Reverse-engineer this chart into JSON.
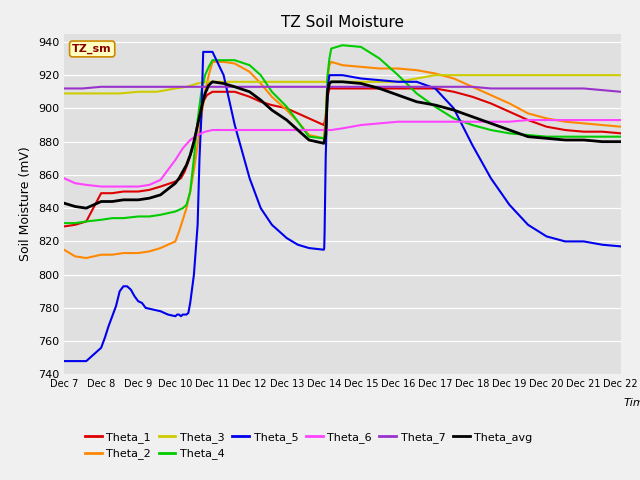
{
  "title": "TZ Soil Moisture",
  "ylabel": "Soil Moisture (mV)",
  "xlabel": "Time",
  "watermark": "TZ_sm",
  "ylim": [
    740,
    945
  ],
  "yticks": [
    740,
    760,
    780,
    800,
    820,
    840,
    860,
    880,
    900,
    920,
    940
  ],
  "xlim": [
    0,
    15
  ],
  "xtick_labels": [
    "Dec 7",
    "Dec 8",
    "Dec 9",
    "Dec 10",
    "Dec 11",
    "Dec 12",
    "Dec 13",
    "Dec 14",
    "Dec 15",
    "Dec 16",
    "Dec 17",
    "Dec 18",
    "Dec 19",
    "Dec 20",
    "Dec 21",
    "Dec 22"
  ],
  "bg_color": "#e0e0e0",
  "fig_color": "#f0f0f0",
  "series": {
    "Theta_1": {
      "color": "#dd0000",
      "x": [
        0,
        0.3,
        0.6,
        1.0,
        1.3,
        1.6,
        2.0,
        2.3,
        2.6,
        3.0,
        3.15,
        3.25,
        3.35,
        3.45,
        3.55,
        3.65,
        3.75,
        3.85,
        4.0,
        4.3,
        4.6,
        5.0,
        5.3,
        5.6,
        6.0,
        6.3,
        6.6,
        7.0,
        7.05,
        7.1,
        7.15,
        7.2,
        7.5,
        8.0,
        8.5,
        9.0,
        9.5,
        10.0,
        10.5,
        11.0,
        11.5,
        12.0,
        12.5,
        13.0,
        13.5,
        14.0,
        14.5,
        15.0
      ],
      "y": [
        829,
        830,
        832,
        849,
        849,
        850,
        850,
        851,
        853,
        856,
        858,
        862,
        868,
        875,
        885,
        897,
        904,
        908,
        910,
        910,
        910,
        907,
        904,
        902,
        900,
        897,
        894,
        890,
        895,
        907,
        912,
        912,
        912,
        912,
        912,
        912,
        912,
        912,
        910,
        907,
        903,
        898,
        893,
        889,
        887,
        886,
        886,
        885
      ]
    },
    "Theta_2": {
      "color": "#ff8800",
      "x": [
        0,
        0.3,
        0.6,
        1.0,
        1.3,
        1.6,
        2.0,
        2.3,
        2.6,
        3.0,
        3.1,
        3.2,
        3.3,
        3.4,
        3.5,
        3.6,
        3.7,
        3.8,
        3.9,
        4.0,
        4.3,
        4.6,
        5.0,
        5.3,
        5.6,
        6.0,
        6.3,
        6.6,
        7.0,
        7.05,
        7.1,
        7.15,
        7.2,
        7.5,
        8.0,
        8.5,
        9.0,
        9.5,
        10.0,
        10.5,
        11.0,
        11.5,
        12.0,
        12.5,
        13.0,
        13.5,
        14.0,
        14.5,
        15.0
      ],
      "y": [
        815,
        811,
        810,
        812,
        812,
        813,
        813,
        814,
        816,
        820,
        826,
        833,
        840,
        850,
        863,
        878,
        895,
        910,
        920,
        928,
        928,
        927,
        922,
        915,
        907,
        899,
        892,
        884,
        882,
        895,
        918,
        926,
        928,
        926,
        925,
        924,
        924,
        923,
        921,
        918,
        913,
        908,
        903,
        897,
        894,
        892,
        891,
        890,
        889
      ]
    },
    "Theta_3": {
      "color": "#cccc00",
      "x": [
        0,
        0.5,
        1.0,
        1.5,
        2.0,
        2.5,
        3.0,
        3.3,
        3.6,
        3.8,
        4.0,
        4.5,
        5.0,
        5.5,
        6.0,
        6.5,
        7.0,
        7.2,
        7.5,
        8.0,
        8.5,
        9.0,
        9.5,
        10.0,
        10.5,
        11.0,
        11.5,
        12.0,
        12.5,
        13.0,
        13.5,
        14.0,
        14.5,
        15.0
      ],
      "y": [
        909,
        909,
        909,
        909,
        910,
        910,
        912,
        913,
        915,
        916,
        916,
        916,
        916,
        916,
        916,
        916,
        916,
        916,
        916,
        916,
        916,
        916,
        918,
        920,
        920,
        920,
        920,
        920,
        920,
        920,
        920,
        920,
        920,
        920
      ]
    },
    "Theta_4": {
      "color": "#00cc00",
      "x": [
        0,
        0.3,
        0.6,
        1.0,
        1.3,
        1.6,
        2.0,
        2.3,
        2.6,
        3.0,
        3.1,
        3.2,
        3.3,
        3.4,
        3.5,
        3.6,
        3.7,
        3.8,
        3.9,
        4.0,
        4.3,
        4.6,
        5.0,
        5.3,
        5.6,
        6.0,
        6.3,
        6.6,
        7.0,
        7.05,
        7.1,
        7.15,
        7.2,
        7.5,
        8.0,
        8.5,
        9.0,
        9.5,
        10.0,
        10.5,
        11.0,
        11.5,
        12.0,
        12.5,
        13.0,
        13.5,
        14.0,
        14.5,
        15.0
      ],
      "y": [
        831,
        831,
        832,
        833,
        834,
        834,
        835,
        835,
        836,
        838,
        839,
        840,
        842,
        850,
        870,
        893,
        910,
        920,
        925,
        929,
        929,
        929,
        926,
        920,
        910,
        901,
        892,
        883,
        882,
        888,
        920,
        930,
        936,
        938,
        937,
        930,
        920,
        909,
        901,
        894,
        890,
        887,
        885,
        884,
        883,
        883,
        883,
        883,
        883
      ]
    },
    "Theta_5": {
      "color": "#0000ee",
      "x": [
        0,
        0.3,
        0.6,
        1.0,
        1.1,
        1.2,
        1.3,
        1.4,
        1.5,
        1.6,
        1.7,
        1.8,
        1.9,
        2.0,
        2.1,
        2.2,
        2.4,
        2.6,
        2.8,
        3.0,
        3.05,
        3.1,
        3.15,
        3.2,
        3.25,
        3.3,
        3.35,
        3.4,
        3.5,
        3.6,
        3.65,
        3.7,
        3.75,
        4.0,
        4.3,
        4.6,
        5.0,
        5.3,
        5.6,
        6.0,
        6.3,
        6.6,
        7.0,
        7.01,
        7.02,
        7.05,
        7.1,
        7.15,
        7.2,
        7.5,
        8.0,
        8.5,
        9.0,
        9.3,
        9.5,
        10.0,
        10.5,
        11.0,
        11.5,
        12.0,
        12.5,
        13.0,
        13.5,
        14.0,
        14.5,
        15.0
      ],
      "y": [
        748,
        748,
        748,
        756,
        762,
        769,
        775,
        781,
        790,
        793,
        793,
        791,
        787,
        784,
        783,
        780,
        779,
        778,
        776,
        775,
        776,
        776,
        775,
        776,
        776,
        776,
        777,
        783,
        800,
        830,
        870,
        895,
        934,
        934,
        920,
        890,
        858,
        840,
        830,
        822,
        818,
        816,
        815,
        816,
        825,
        870,
        912,
        920,
        920,
        920,
        918,
        917,
        916,
        916,
        916,
        912,
        900,
        878,
        858,
        842,
        830,
        823,
        820,
        820,
        818,
        817
      ]
    },
    "Theta_6": {
      "color": "#ff44ff",
      "x": [
        0,
        0.3,
        0.6,
        1.0,
        1.3,
        1.6,
        2.0,
        2.3,
        2.6,
        3.0,
        3.2,
        3.4,
        3.6,
        3.8,
        4.0,
        4.5,
        5.0,
        5.5,
        6.0,
        6.5,
        7.0,
        7.2,
        7.5,
        8.0,
        8.5,
        9.0,
        9.5,
        10.0,
        10.5,
        11.0,
        11.5,
        12.0,
        12.5,
        13.0,
        13.5,
        14.0,
        14.5,
        15.0
      ],
      "y": [
        858,
        855,
        854,
        853,
        853,
        853,
        853,
        854,
        857,
        869,
        876,
        881,
        884,
        886,
        887,
        887,
        887,
        887,
        887,
        887,
        887,
        887,
        888,
        890,
        891,
        892,
        892,
        892,
        892,
        892,
        892,
        892,
        893,
        893,
        893,
        893,
        893,
        893
      ]
    },
    "Theta_7": {
      "color": "#9933cc",
      "x": [
        0,
        0.5,
        1.0,
        1.5,
        2.0,
        2.5,
        3.0,
        3.3,
        3.6,
        3.8,
        4.0,
        4.5,
        5.0,
        5.5,
        6.0,
        6.5,
        7.0,
        7.2,
        7.5,
        8.0,
        8.5,
        9.0,
        9.5,
        10.0,
        10.5,
        11.0,
        11.5,
        12.0,
        12.5,
        13.0,
        13.5,
        14.0,
        14.5,
        15.0
      ],
      "y": [
        912,
        912,
        913,
        913,
        913,
        913,
        913,
        913,
        913,
        913,
        913,
        913,
        913,
        913,
        913,
        913,
        913,
        913,
        913,
        913,
        913,
        913,
        913,
        913,
        913,
        913,
        912,
        912,
        912,
        912,
        912,
        912,
        911,
        910
      ]
    },
    "Theta_avg": {
      "color": "#000000",
      "x": [
        0,
        0.3,
        0.6,
        1.0,
        1.3,
        1.6,
        2.0,
        2.3,
        2.6,
        3.0,
        3.1,
        3.2,
        3.3,
        3.4,
        3.5,
        3.6,
        3.7,
        3.8,
        3.9,
        4.0,
        4.3,
        4.6,
        5.0,
        5.3,
        5.6,
        6.0,
        6.3,
        6.6,
        7.0,
        7.05,
        7.1,
        7.15,
        7.2,
        7.5,
        8.0,
        8.5,
        9.0,
        9.5,
        10.0,
        10.5,
        11.0,
        11.5,
        12.0,
        12.5,
        13.0,
        13.5,
        14.0,
        14.5,
        15.0
      ],
      "y": [
        843,
        841,
        840,
        844,
        844,
        845,
        845,
        846,
        848,
        855,
        858,
        862,
        866,
        872,
        880,
        890,
        900,
        909,
        914,
        916,
        915,
        913,
        910,
        905,
        899,
        893,
        887,
        881,
        879,
        884,
        910,
        915,
        916,
        916,
        915,
        912,
        908,
        904,
        902,
        899,
        895,
        891,
        887,
        883,
        882,
        881,
        881,
        880,
        880
      ]
    }
  },
  "legend_row1": [
    [
      "Theta_1",
      "#dd0000"
    ],
    [
      "Theta_2",
      "#ff8800"
    ],
    [
      "Theta_3",
      "#cccc00"
    ],
    [
      "Theta_4",
      "#00cc00"
    ],
    [
      "Theta_5",
      "#0000ee"
    ],
    [
      "Theta_6",
      "#ff44ff"
    ]
  ],
  "legend_row2": [
    [
      "Theta_7",
      "#9933cc"
    ],
    [
      "Theta_avg",
      "#000000"
    ]
  ]
}
